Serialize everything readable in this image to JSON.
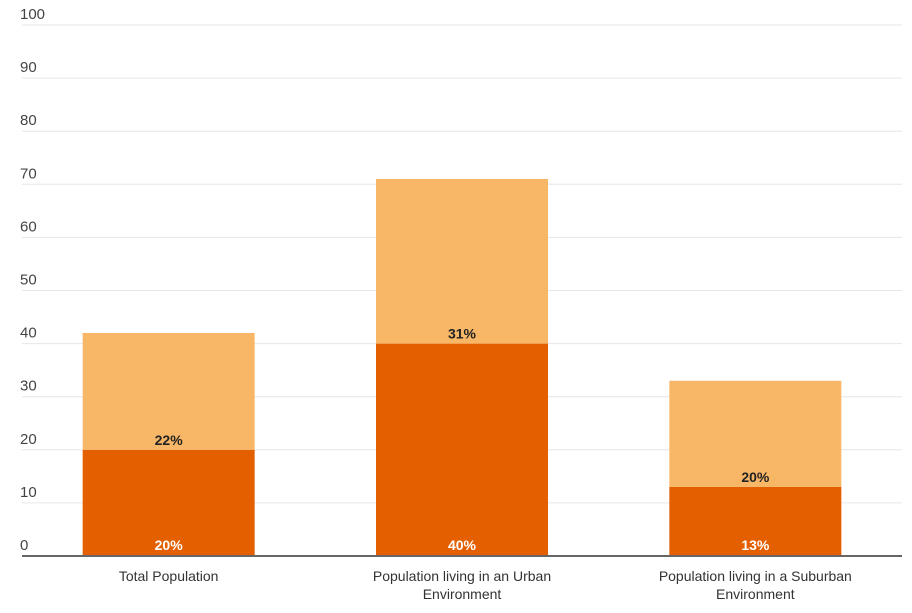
{
  "chart_data": {
    "type": "bar",
    "stacked": true,
    "title": "",
    "xlabel": "",
    "ylabel": "",
    "ylim": [
      0,
      100
    ],
    "yticks": [
      0,
      10,
      20,
      30,
      40,
      50,
      60,
      70,
      80,
      90,
      100
    ],
    "grid": true,
    "legend": "none",
    "categories": [
      [
        "Total Population"
      ],
      [
        "Population living in an Urban",
        "Environment"
      ],
      [
        "Population living in a Suburban",
        "Environment"
      ]
    ],
    "series": [
      {
        "values": [
          20,
          40,
          13
        ],
        "labels": [
          "20%",
          "40%",
          "13%"
        ],
        "color": "#e35f00"
      },
      {
        "values": [
          22,
          31,
          20
        ],
        "labels": [
          "22%",
          "31%",
          "20%"
        ],
        "color": "#f8b767"
      }
    ],
    "colors": {
      "grid": "#e6e6e6",
      "axis": "#666666"
    }
  }
}
